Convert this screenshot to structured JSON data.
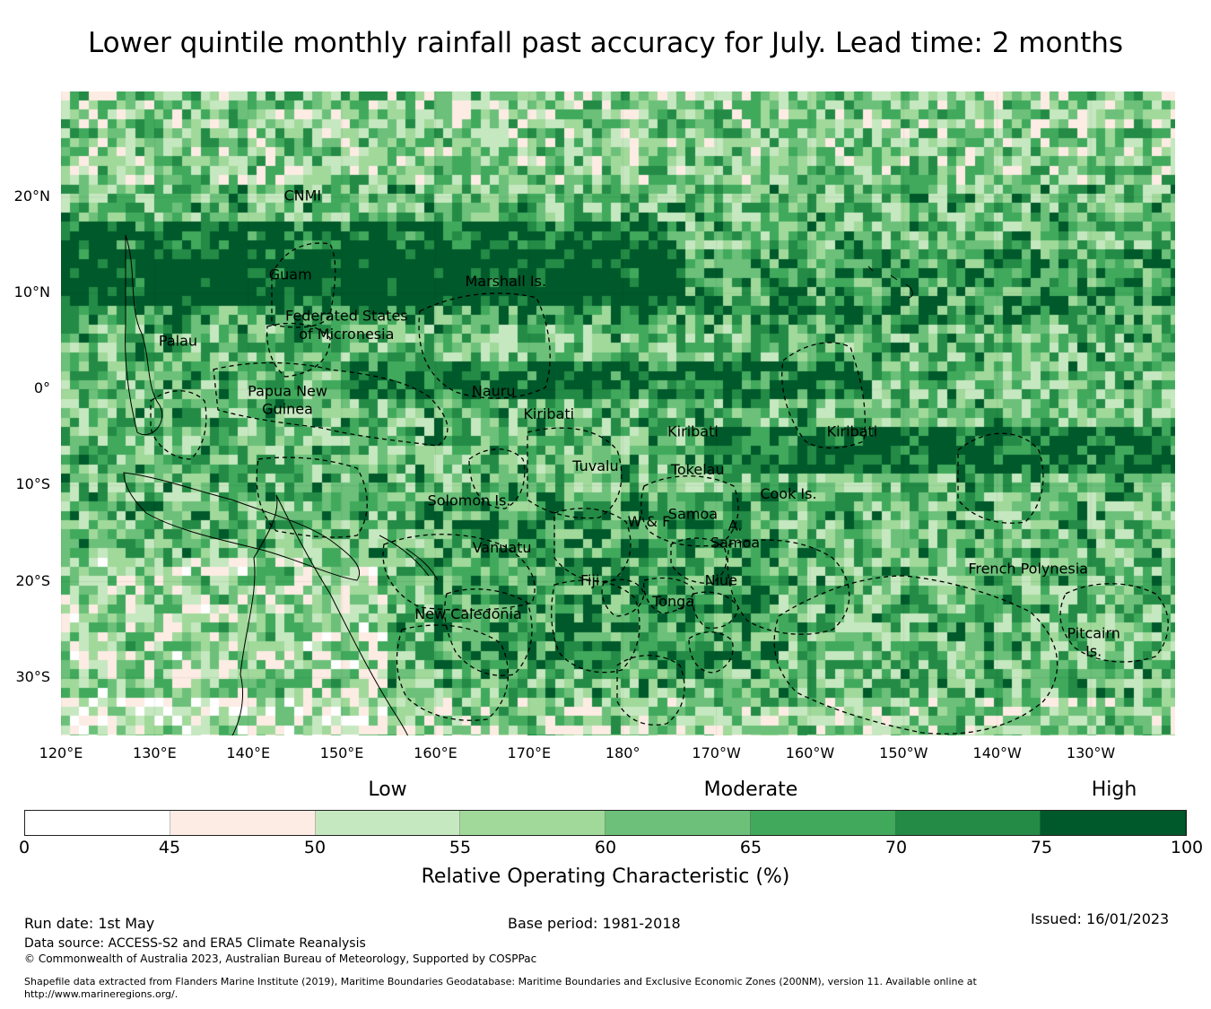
{
  "title": "Lower quintile monthly rainfall past accuracy for July. Lead time: 2 months",
  "map": {
    "lon_labels": [
      "120°E",
      "130°E",
      "140°E",
      "150°E",
      "160°E",
      "170°E",
      "180°",
      "170°W",
      "160°W",
      "150°W",
      "140°W",
      "130°W"
    ],
    "lon_values": [
      120,
      130,
      140,
      150,
      160,
      170,
      180,
      190,
      200,
      210,
      220,
      230
    ],
    "lat_labels": [
      "20°N",
      "10°N",
      "0°",
      "10°S",
      "20°S",
      "30°S"
    ],
    "lat_values": [
      20,
      10,
      0,
      -10,
      -20,
      -30
    ],
    "extent": {
      "lon_min": 120,
      "lon_max": 239,
      "lat_min": -36,
      "lat_max": 31
    },
    "regions": [
      {
        "name": "CNMI",
        "lon": 145.8,
        "lat": 20.2
      },
      {
        "name": "Guam",
        "lon": 144.5,
        "lat": 12.0
      },
      {
        "name": "Marshall Is.",
        "lon": 167.5,
        "lat": 11.3
      },
      {
        "name": "Federated States",
        "lon": 150.5,
        "lat": 7.7
      },
      {
        "name": "of Micronesia",
        "lon": 150.5,
        "lat": 5.8
      },
      {
        "name": "Palau",
        "lon": 132.5,
        "lat": 5.1
      },
      {
        "name": "Nauru",
        "lon": 166.2,
        "lat": -0.1
      },
      {
        "name": "Papua New",
        "lon": 144.2,
        "lat": -0.1
      },
      {
        "name": "Guinea",
        "lon": 144.2,
        "lat": -2.0
      },
      {
        "name": "Kiribati",
        "lon": 172.1,
        "lat": -2.5
      },
      {
        "name": "Kiribati",
        "lon": 187.5,
        "lat": -4.3
      },
      {
        "name": "Kiribati",
        "lon": 204.5,
        "lat": -4.3
      },
      {
        "name": "Tuvalu",
        "lon": 177.1,
        "lat": -7.9
      },
      {
        "name": "Tokelau",
        "lon": 188.0,
        "lat": -8.3
      },
      {
        "name": "Cook Is.",
        "lon": 197.7,
        "lat": -10.8
      },
      {
        "name": "Solomon Is.",
        "lon": 163.6,
        "lat": -11.5
      },
      {
        "name": "Samoa",
        "lon": 187.5,
        "lat": -12.9
      },
      {
        "name": "W & F",
        "lon": 182.8,
        "lat": -13.7
      },
      {
        "name": "A.",
        "lon": 192.0,
        "lat": -14.1
      },
      {
        "name": "Samoa",
        "lon": 192.0,
        "lat": -15.9
      },
      {
        "name": "Vanuatu",
        "lon": 167.1,
        "lat": -16.4
      },
      {
        "name": "French Polynesia",
        "lon": 223.3,
        "lat": -18.6
      },
      {
        "name": "Fiji",
        "lon": 176.5,
        "lat": -19.8
      },
      {
        "name": "Niue",
        "lon": 190.5,
        "lat": -19.8
      },
      {
        "name": "Tonga",
        "lon": 185.4,
        "lat": -22.0
      },
      {
        "name": "New Caledonia",
        "lon": 163.5,
        "lat": -23.3
      },
      {
        "name": "Pitcairn",
        "lon": 230.3,
        "lat": -25.3
      },
      {
        "name": "Is.",
        "lon": 230.3,
        "lat": -27.2
      }
    ]
  },
  "colorbar": {
    "categories": [
      {
        "label": "Low",
        "value": 52.5
      },
      {
        "label": "Moderate",
        "value": 65
      },
      {
        "label": "High",
        "value": 87.5
      }
    ],
    "bins": [
      0,
      45,
      50,
      55,
      60,
      65,
      70,
      75,
      100
    ],
    "tick_labels": [
      "0",
      "45",
      "50",
      "55",
      "60",
      "65",
      "70",
      "75",
      "100"
    ],
    "colors": [
      "#ffffff",
      "#fdece4",
      "#c6e8c0",
      "#a1d99b",
      "#6cc07a",
      "#40a95c",
      "#238b45",
      "#00592a"
    ],
    "title": "Relative Operating Characteristic (%)"
  },
  "footer": {
    "run_date": "Run date: 1st May",
    "base_period": "Base period: 1981-2018",
    "issued": "Issued: 16/01/2023",
    "data_source": "Data source: ACCESS-S2 and ERA5 Climate Reanalysis",
    "copyright": "© Commonwealth of Australia 2023, Australian Bureau of Meteorology, Supported by COSPPac",
    "shapefile_line1": "Shapefile data extracted from Flanders Marine Institute (2019), Maritime Boundaries Geodatabase: Maritime Boundaries and Exclusive Economic Zones (200NM), version 11. Available online at",
    "shapefile_line2": "http://www.marineregions.org/."
  }
}
